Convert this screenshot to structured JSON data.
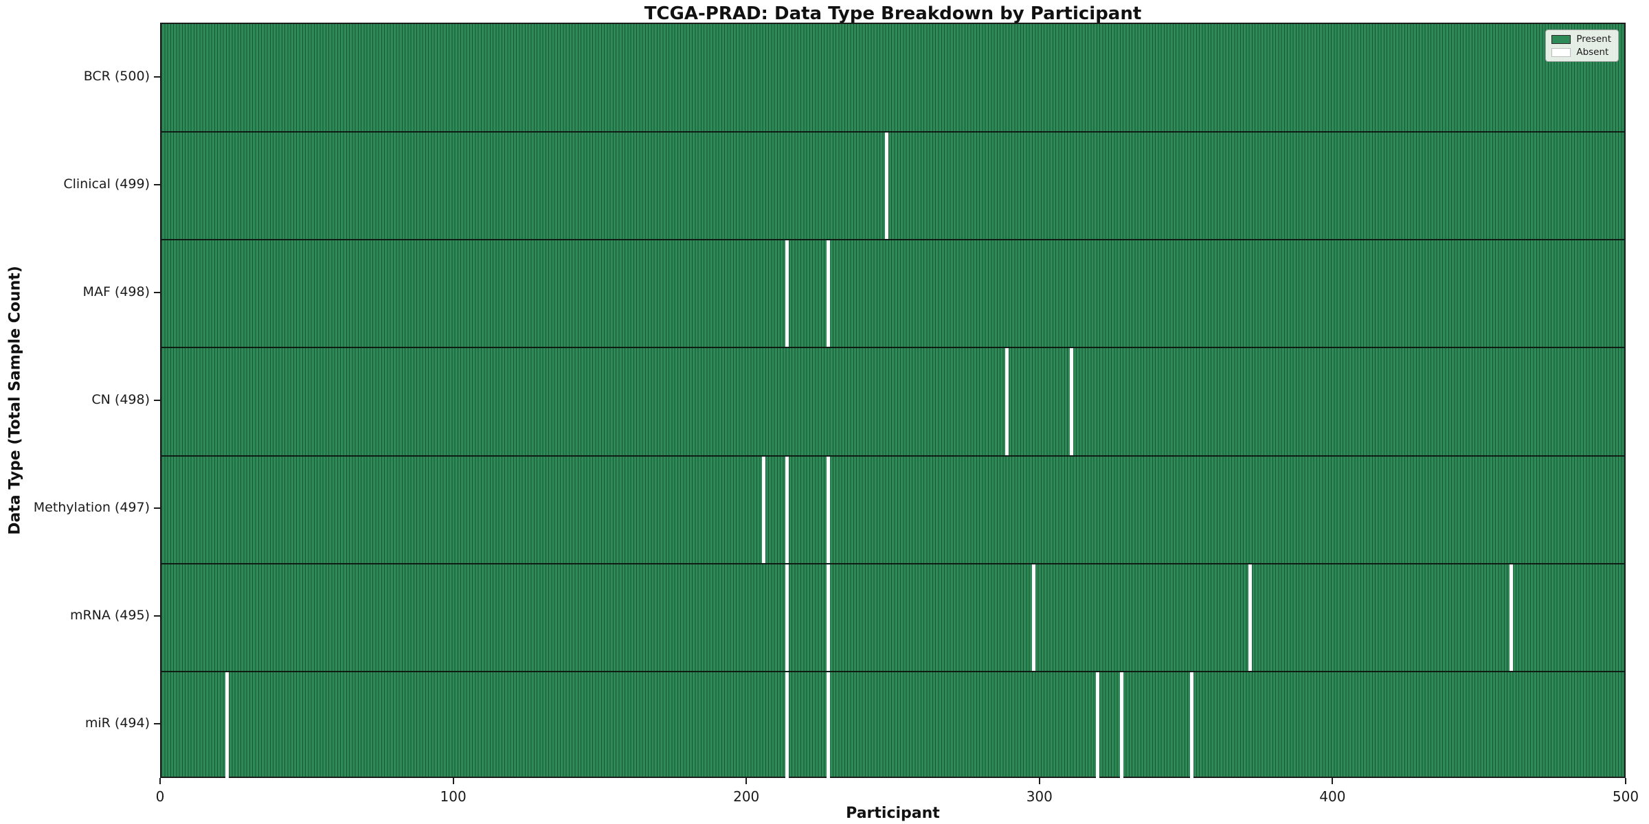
{
  "chart_data": {
    "type": "heatmap",
    "title": "TCGA-PRAD: Data Type Breakdown by Participant",
    "xlabel": "Participant",
    "ylabel": "Data Type (Total Sample Count)",
    "x_ticks": [
      0,
      100,
      200,
      300,
      400,
      500
    ],
    "xlim": [
      0,
      500
    ],
    "n_participants": 500,
    "grid": false,
    "legend_position": "upper right",
    "rows": [
      {
        "label": "BCR (500)",
        "data_type": "BCR",
        "total_samples": 500,
        "absent_participants": []
      },
      {
        "label": "Clinical (499)",
        "data_type": "Clinical",
        "total_samples": 499,
        "absent_participants": [
          247
        ]
      },
      {
        "label": "MAF (498)",
        "data_type": "MAF",
        "total_samples": 498,
        "absent_participants": [
          213,
          227
        ]
      },
      {
        "label": "CN (498)",
        "data_type": "CN",
        "total_samples": 498,
        "absent_participants": [
          288,
          310
        ]
      },
      {
        "label": "Methylation (497)",
        "data_type": "Methylation",
        "total_samples": 497,
        "absent_participants": [
          205,
          213,
          227
        ]
      },
      {
        "label": "mRNA (495)",
        "data_type": "mRNA",
        "total_samples": 495,
        "absent_participants": [
          213,
          227,
          297,
          371,
          460
        ]
      },
      {
        "label": "miR (494)",
        "data_type": "miR",
        "total_samples": 494,
        "absent_participants": [
          22,
          213,
          227,
          319,
          327,
          351
        ]
      }
    ],
    "legend": {
      "entries": [
        {
          "label": "Present",
          "color": "#2e8b57"
        },
        {
          "label": "Absent",
          "color": "#ffffff"
        }
      ]
    },
    "colors": {
      "present": "#2e8b57",
      "bar_edge": "#1a5434",
      "absent": "#ffffff",
      "spine": "#1c1c1c"
    }
  }
}
